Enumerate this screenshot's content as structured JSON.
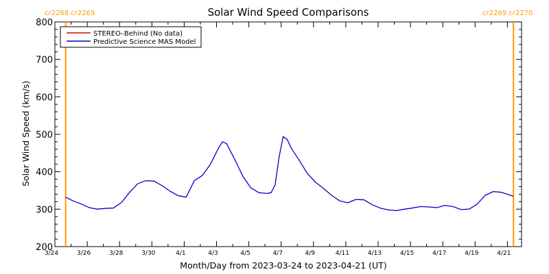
{
  "chart_data": {
    "type": "line",
    "title": "Solar Wind Speed Comparisons",
    "xlabel": "Month/Day from 2023-03-24 to 2023-04-21 (UT)",
    "ylabel": "Solar Wind Speed (km/s)",
    "xlim": [
      "2023-03-24",
      "2023-04-21T21:00"
    ],
    "ylim": [
      200,
      800
    ],
    "grid": false,
    "legend_position": "top-left",
    "x_tick_labels": [
      "3/24",
      "3/26",
      "3/28",
      "3/30",
      "4/1",
      "4/3",
      "4/5",
      "4/7",
      "4/9",
      "4/11",
      "4/13",
      "4/15",
      "4/17",
      "4/19",
      "4/21"
    ],
    "y_tick_labels": [
      "200",
      "300",
      "400",
      "500",
      "600",
      "700",
      "800"
    ],
    "series": [
      {
        "name": "STEREO–Behind (No data)",
        "color": "#cc0000",
        "x": [],
        "y": []
      },
      {
        "name": "Predictive Science MAS Model",
        "color": "#0000cc",
        "x": [
          "2023-03-24T16:00",
          "2023-03-25T03:00",
          "2023-03-25T15:00",
          "2023-03-26T03:00",
          "2023-03-26T15:00",
          "2023-03-27T03:00",
          "2023-03-27T15:00",
          "2023-03-28T03:00",
          "2023-03-28T15:00",
          "2023-03-29T03:00",
          "2023-03-29T15:00",
          "2023-03-30T03:00",
          "2023-03-30T15:00",
          "2023-03-31T03:00",
          "2023-03-31T15:00",
          "2023-04-01T03:00",
          "2023-04-01T15:00",
          "2023-04-02T03:00",
          "2023-04-02T15:00",
          "2023-04-03T03:00",
          "2023-04-03T09:00",
          "2023-04-03T15:00",
          "2023-04-04T03:00",
          "2023-04-04T15:00",
          "2023-04-05T03:00",
          "2023-04-05T15:00",
          "2023-04-06T03:00",
          "2023-04-06T09:00",
          "2023-04-06T15:00",
          "2023-04-06T21:00",
          "2023-04-07T03:00",
          "2023-04-07T09:00",
          "2023-04-07T15:00",
          "2023-04-08T03:00",
          "2023-04-08T15:00",
          "2023-04-09T03:00",
          "2023-04-09T15:00",
          "2023-04-10T03:00",
          "2023-04-10T15:00",
          "2023-04-11T03:00",
          "2023-04-11T15:00",
          "2023-04-12T03:00",
          "2023-04-12T15:00",
          "2023-04-13T03:00",
          "2023-04-13T15:00",
          "2023-04-14T03:00",
          "2023-04-14T15:00",
          "2023-04-15T03:00",
          "2023-04-15T15:00",
          "2023-04-16T03:00",
          "2023-04-16T15:00",
          "2023-04-17T03:00",
          "2023-04-17T15:00",
          "2023-04-18T03:00",
          "2023-04-18T15:00",
          "2023-04-19T03:00",
          "2023-04-19T15:00",
          "2023-04-20T03:00",
          "2023-04-20T15:00",
          "2023-04-21T03:00",
          "2023-04-21T09:00"
        ],
        "y": [
          332,
          322,
          314,
          304,
          300,
          302,
          303,
          318,
          345,
          368,
          376,
          375,
          363,
          348,
          336,
          332,
          376,
          390,
          420,
          463,
          480,
          475,
          433,
          388,
          357,
          344,
          342,
          344,
          365,
          440,
          494,
          486,
          463,
          430,
          395,
          372,
          355,
          337,
          322,
          317,
          326,
          325,
          312,
          303,
          298,
          296,
          300,
          303,
          307,
          306,
          304,
          310,
          307,
          299,
          300,
          313,
          337,
          347,
          345,
          338,
          334
        ]
      }
    ],
    "carrington_markers": [
      {
        "label": "cr2268 cr2269",
        "x": "2023-03-24T16:00",
        "color": "#ff9900"
      },
      {
        "label": "cr2269 cr2270",
        "x": "2023-04-21T09:00",
        "color": "#ff9900"
      }
    ]
  }
}
